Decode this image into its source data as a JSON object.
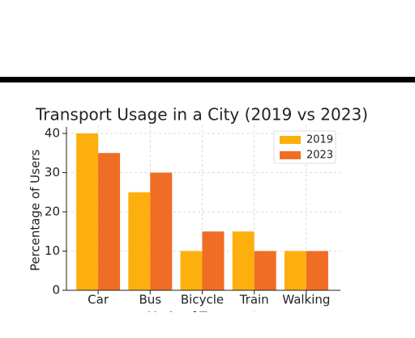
{
  "chart_data": {
    "type": "bar",
    "title": "Transport Usage in a City (2019 vs 2023)",
    "x_label": "Mode of Transport",
    "y_label": "Percentage of Users",
    "categories": [
      "Car",
      "Bus",
      "Bicycle",
      "Train",
      "Walking"
    ],
    "series": [
      {
        "name": "2019",
        "color": "#fdb00d",
        "values": [
          40,
          25,
          10,
          15,
          10
        ]
      },
      {
        "name": "2023",
        "color": "#f06d26",
        "values": [
          35,
          30,
          15,
          10,
          10
        ]
      }
    ],
    "ylim": [
      0,
      42
    ],
    "yticks": [
      0,
      10,
      20,
      30,
      40
    ],
    "grid": true,
    "legend": "upper right"
  }
}
